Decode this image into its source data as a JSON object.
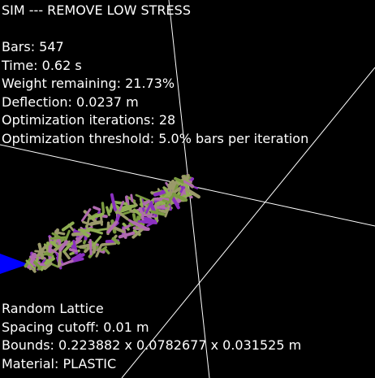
{
  "hud": {
    "title": "SIM --- REMOVE LOW STRESS",
    "stats": {
      "bars": "Bars: 547",
      "time": "Time: 0.62 s",
      "weight": "Weight remaining: 21.73%",
      "deflection": "Deflection: 0.0237 m",
      "iterations": "Optimization iterations: 28",
      "threshold": "Optimization threshold: 5.0% bars per iteration"
    },
    "lattice": {
      "name": "Random Lattice",
      "spacing": "Spacing cutoff: 0.01 m",
      "bounds": "Bounds: 0.223882 x 0.0782677 x 0.031525 m",
      "material": "Material: PLASTIC"
    }
  },
  "scene": {
    "background": "#000000",
    "axis_color": "#ffffff",
    "support_color": "#0000ff",
    "bar_colors": [
      "#b06ab0",
      "#8fae52",
      "#8a30c0",
      "#9b9a6a",
      "#7a9a40"
    ]
  }
}
